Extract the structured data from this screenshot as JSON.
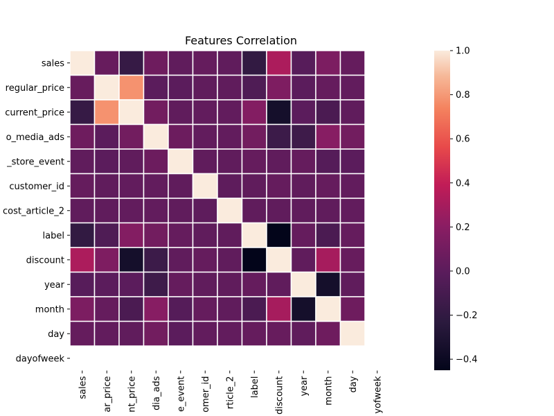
{
  "chart_data": {
    "type": "heatmap",
    "title": "Features Correlation",
    "row_labels": [
      "sales",
      "regular_price",
      "current_price",
      "o_media_ads",
      "_store_event",
      "customer_id",
      "cost_article_2",
      "label",
      "discount",
      "year",
      "month",
      "day",
      "dayofweek"
    ],
    "col_labels": [
      "sales",
      "ar_price",
      "nt_price",
      "dia_ads",
      "e_event",
      "omer_id",
      "rticle_2",
      "label",
      "discount",
      "year",
      "month",
      "day",
      "yofweek"
    ],
    "values": [
      [
        1.0,
        0.05,
        -0.18,
        0.08,
        0.02,
        0.04,
        0.02,
        -0.2,
        0.32,
        -0.02,
        0.14,
        0.04,
        null
      ],
      [
        0.05,
        1.0,
        0.78,
        0.0,
        0.0,
        0.02,
        0.02,
        -0.06,
        0.15,
        0.0,
        0.04,
        0.03,
        null
      ],
      [
        -0.18,
        0.78,
        1.0,
        0.1,
        0.02,
        0.03,
        0.03,
        0.17,
        -0.35,
        0.0,
        -0.08,
        0.02,
        null
      ],
      [
        0.08,
        0.0,
        0.1,
        1.0,
        0.07,
        0.03,
        0.03,
        0.1,
        -0.15,
        -0.14,
        0.19,
        0.1,
        null
      ],
      [
        0.02,
        0.0,
        0.02,
        0.07,
        1.0,
        0.02,
        0.02,
        0.04,
        0.02,
        0.04,
        -0.03,
        0.0,
        null
      ],
      [
        0.04,
        0.02,
        0.03,
        0.03,
        0.02,
        1.0,
        0.01,
        0.02,
        0.04,
        0.02,
        0.04,
        0.03,
        null
      ],
      [
        0.02,
        0.02,
        0.03,
        0.03,
        0.02,
        0.01,
        1.0,
        0.02,
        0.02,
        0.02,
        0.02,
        0.03,
        null
      ],
      [
        -0.2,
        -0.06,
        0.17,
        0.1,
        0.04,
        0.02,
        0.02,
        1.0,
        -0.45,
        0.04,
        -0.08,
        0.04,
        null
      ],
      [
        0.32,
        0.15,
        -0.35,
        -0.15,
        0.02,
        0.04,
        0.02,
        -0.45,
        1.0,
        0.02,
        0.3,
        0.05,
        null
      ],
      [
        -0.02,
        0.0,
        0.0,
        -0.14,
        0.04,
        0.02,
        0.02,
        0.04,
        0.02,
        1.0,
        -0.35,
        0.02,
        null
      ],
      [
        0.14,
        0.04,
        -0.08,
        0.19,
        -0.03,
        0.04,
        0.02,
        -0.08,
        0.3,
        -0.35,
        1.0,
        0.08,
        null
      ],
      [
        0.04,
        0.03,
        0.02,
        0.1,
        0.0,
        0.03,
        0.03,
        0.04,
        0.05,
        0.02,
        0.08,
        1.0,
        null
      ],
      [
        null,
        null,
        null,
        null,
        null,
        null,
        null,
        null,
        null,
        null,
        null,
        null,
        null
      ]
    ],
    "vmin": -0.45,
    "vmax": 1.0,
    "colormap": "rocket",
    "cell_border_color": "#ffffff",
    "colorbar": {
      "ticks": [
        -0.4,
        -0.2,
        0.0,
        0.2,
        0.4,
        0.6,
        0.8,
        1.0
      ],
      "tick_labels": [
        "−0.4",
        "−0.2",
        "0.0",
        "0.2",
        "0.4",
        "0.6",
        "0.8",
        "1.0"
      ],
      "placement": "right"
    }
  }
}
